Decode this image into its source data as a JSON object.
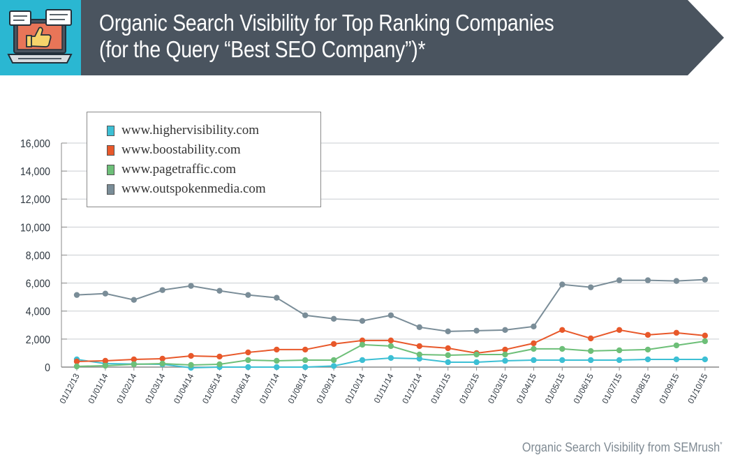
{
  "header": {
    "title_line1": "Organic Search Visibility for Top Ranking Companies",
    "title_line2": "(for the Query “Best SEO Company”)*",
    "icon": "laptop-thumbs-up-icon",
    "colors": {
      "icon_bg": "#2ab7d2",
      "banner_bg": "#4a545f"
    }
  },
  "footer": {
    "source": "Organic Search Visibility from SEMrush",
    "mark": "*"
  },
  "chart_data": {
    "type": "line",
    "title": "Organic Search Visibility for Top Ranking Companies (for the Query “Best SEO Company”)*",
    "xlabel": "",
    "ylabel": "",
    "ylim": [
      0,
      16000
    ],
    "yticks": [
      "0",
      "2,000",
      "4,000",
      "6,000",
      "8,000",
      "10,000",
      "12,000",
      "14,000",
      "16,000"
    ],
    "grid": true,
    "legend_position": "top-left",
    "categories": [
      "01/12/13",
      "01/01/14",
      "01/02/14",
      "01/03/14",
      "01/04/14",
      "01/05/14",
      "01/06/14",
      "01/07/14",
      "01/08/14",
      "01/09/14",
      "01/10/14",
      "01/11/14",
      "01/12/14",
      "01/01/15",
      "01/02/15",
      "01/03/15",
      "01/04/15",
      "01/05/15",
      "01/06/15",
      "01/07/15",
      "01/08/15",
      "01/09/15",
      "01/10/15"
    ],
    "series": [
      {
        "name": "www.highervisibility.com",
        "color": "#3cbfd4",
        "values": [
          550,
          250,
          220,
          200,
          -50,
          0,
          0,
          0,
          0,
          80,
          500,
          650,
          600,
          350,
          350,
          450,
          500,
          500,
          500,
          500,
          550,
          550,
          550
        ]
      },
      {
        "name": "www.boostability.com",
        "color": "#e8582a",
        "values": [
          400,
          450,
          550,
          600,
          800,
          750,
          1050,
          1250,
          1250,
          1650,
          1900,
          1900,
          1500,
          1350,
          1000,
          1250,
          1700,
          2650,
          2050,
          2650,
          2300,
          2450,
          2250
        ]
      },
      {
        "name": "www.pagetraffic.com",
        "color": "#6dbf78",
        "values": [
          50,
          100,
          200,
          250,
          150,
          200,
          500,
          450,
          500,
          500,
          1600,
          1500,
          900,
          850,
          900,
          900,
          1300,
          1300,
          1150,
          1200,
          1250,
          1550,
          1850
        ]
      },
      {
        "name": "www.outspokenmedia.com",
        "color": "#7a8d98",
        "values": [
          5150,
          5250,
          4800,
          5500,
          5800,
          5450,
          5150,
          4950,
          3700,
          3450,
          3300,
          3700,
          2850,
          2550,
          2600,
          2650,
          2900,
          5900,
          5700,
          6200,
          6200,
          6150,
          6250
        ]
      }
    ]
  }
}
